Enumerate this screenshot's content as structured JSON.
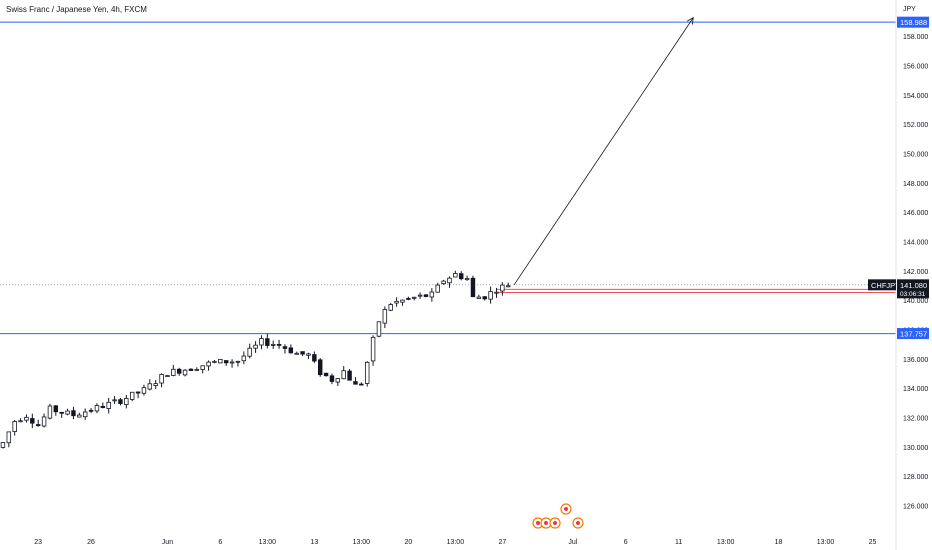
{
  "header": {
    "title": "Swiss Franc / Japanese Yen, 4h, FXCM"
  },
  "colors": {
    "up": "#ffffff",
    "down": "#131722",
    "level_line": "#2962ff",
    "price_line": "#787b86",
    "red": "#f23645",
    "tag_dark": "#131722",
    "tag_blue": "#2962ff",
    "event": "#f57c00"
  },
  "chart_data": {
    "type": "candlestick",
    "title": "Swiss Franc / Japanese Yen, 4h, FXCM",
    "currency": "JPY",
    "y_ticks": [
      126,
      128,
      130,
      132,
      134,
      136,
      138,
      140,
      142,
      144,
      146,
      148,
      150,
      152,
      154,
      156,
      158
    ],
    "y_tick_labels": [
      "126.000",
      "128.000",
      "130.000",
      "132.000",
      "134.000",
      "136.000",
      "138.000",
      "140.000",
      "142.000",
      "144.000",
      "146.000",
      "148.000",
      "150.000",
      "152.000",
      "154.000",
      "156.000",
      "158.000"
    ],
    "ylim": [
      124.5,
      160.5
    ],
    "x_tick_labels": [
      "23",
      "26",
      "Jun",
      "6",
      "13:00",
      "13",
      "13:00",
      "20",
      "13:00",
      "27",
      "Jul",
      "6",
      "11",
      "13:00",
      "18",
      "13:00",
      "25"
    ],
    "x_tick_index": [
      6,
      15,
      28,
      37,
      45,
      53,
      61,
      69,
      77,
      85,
      97,
      106,
      115,
      123,
      132,
      140,
      148
    ],
    "index_range": [
      -0.5,
      152
    ],
    "candle_count": 87,
    "ohlc_close_path": [
      [
        0,
        130.3
      ],
      [
        2,
        131.8
      ],
      [
        4,
        132.2
      ],
      [
        6,
        131.5
      ],
      [
        8,
        132.6
      ],
      [
        12,
        132.2
      ],
      [
        16,
        132.7
      ],
      [
        20,
        133.2
      ],
      [
        24,
        133.9
      ],
      [
        28,
        135.1
      ],
      [
        32,
        135.4
      ],
      [
        36,
        135.8
      ],
      [
        40,
        135.9
      ],
      [
        44,
        137.2
      ],
      [
        47,
        137.0
      ],
      [
        50,
        136.4
      ],
      [
        52,
        136.3
      ],
      [
        54,
        135.1
      ],
      [
        56,
        134.6
      ],
      [
        58,
        135.2
      ],
      [
        60,
        134.2
      ],
      [
        61,
        134.4
      ],
      [
        62,
        135.8
      ],
      [
        63,
        137.3
      ],
      [
        64,
        138.6
      ],
      [
        65,
        139.3
      ],
      [
        66,
        139.8
      ],
      [
        68,
        140.0
      ],
      [
        70,
        140.2
      ],
      [
        73,
        140.4
      ],
      [
        75,
        141.4
      ],
      [
        77,
        141.8
      ],
      [
        79,
        141.5
      ],
      [
        80,
        140.2
      ],
      [
        82,
        140.3
      ],
      [
        84,
        140.8
      ],
      [
        86,
        141.1
      ]
    ],
    "levels": [
      {
        "label": "158.988",
        "value": 158.988,
        "style": "level"
      },
      {
        "label": "137.757",
        "value": 137.757,
        "style": "level"
      },
      {
        "label": "141.080",
        "value": 141.08,
        "style": "last"
      },
      {
        "label": "140.774",
        "value": 140.774,
        "style": "red"
      },
      {
        "label": "140.562",
        "value": 140.562,
        "style": "red"
      }
    ],
    "price_label": {
      "symbol": "CHFJPY",
      "value": "141.080",
      "countdown": "03:06:31"
    },
    "arrow": {
      "from": [
        87,
        141.08
      ],
      "to": [
        117.5,
        159.3
      ]
    },
    "event_markers": 5
  }
}
